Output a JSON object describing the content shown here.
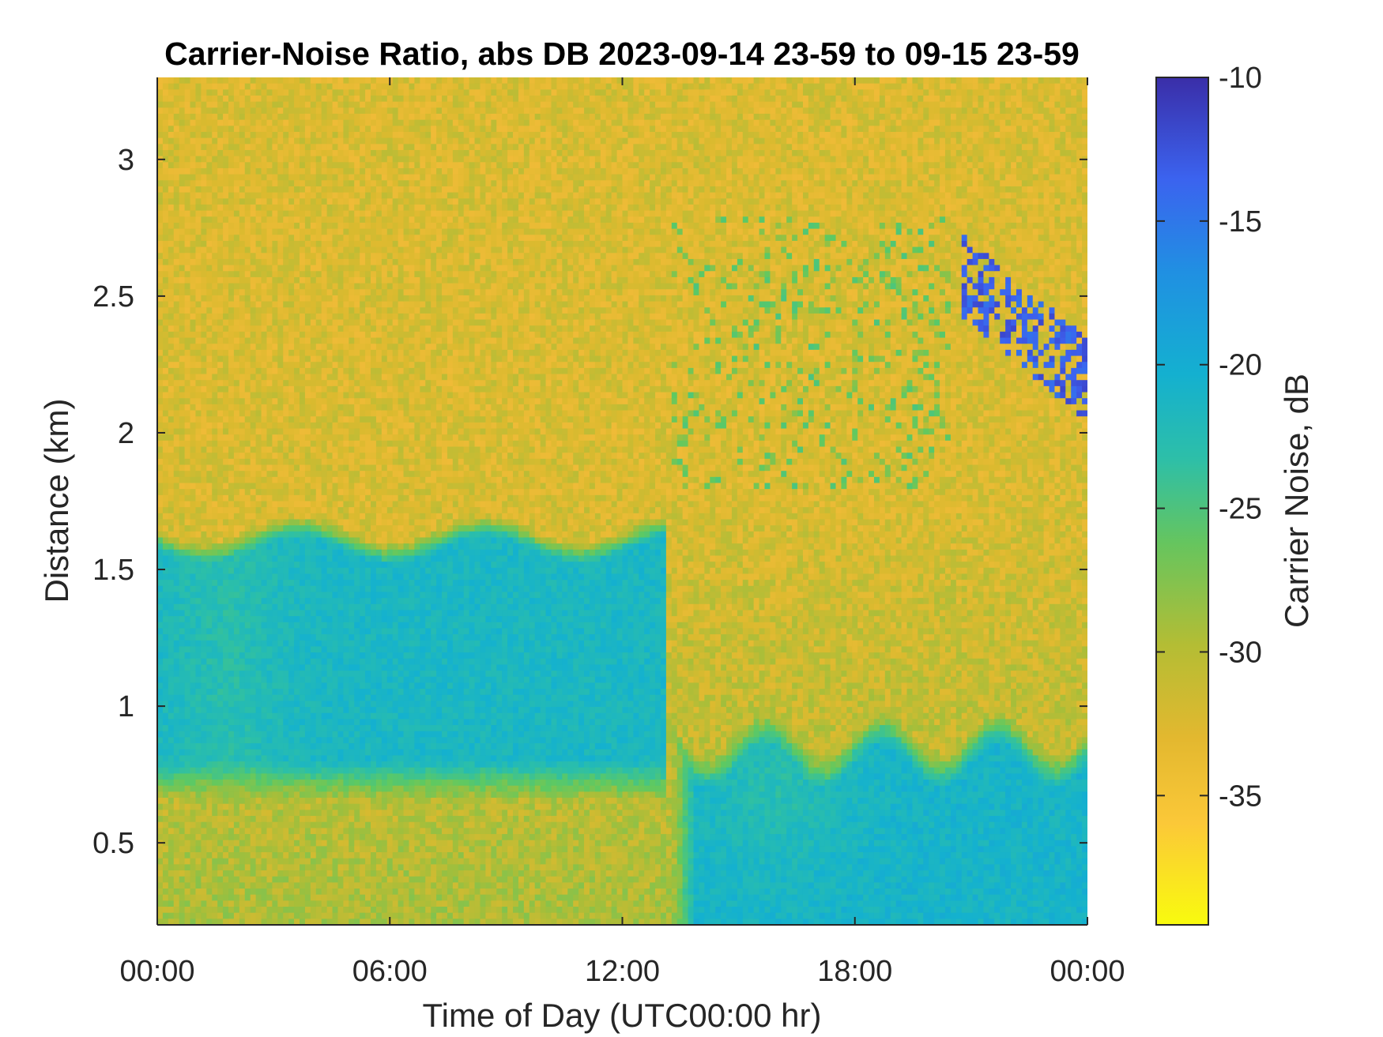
{
  "chart_data": {
    "type": "heatmap",
    "title": "Carrier-Noise Ratio, abs DB 2023-09-14 23-59 to 09-15 23-59",
    "xlabel": "Time of Day (UTC00:00 hr)",
    "ylabel": "Distance (km)",
    "xlim": [
      0,
      24
    ],
    "ylim": [
      0.2,
      3.3
    ],
    "x_ticks": [
      {
        "value": 0,
        "label": "00:00"
      },
      {
        "value": 6,
        "label": "06:00"
      },
      {
        "value": 12,
        "label": "12:00"
      },
      {
        "value": 18,
        "label": "18:00"
      },
      {
        "value": 24,
        "label": "00:00"
      }
    ],
    "y_ticks": [
      {
        "value": 0.5,
        "label": "0.5"
      },
      {
        "value": 1,
        "label": "1"
      },
      {
        "value": 1.5,
        "label": "1.5"
      },
      {
        "value": 2,
        "label": "2"
      },
      {
        "value": 2.5,
        "label": "2.5"
      },
      {
        "value": 3,
        "label": "3"
      }
    ],
    "colorbar": {
      "label": "Carrier Noise, dB",
      "range": [
        -39.5,
        -10
      ],
      "ticks": [
        {
          "value": -10,
          "label": "-10"
        },
        {
          "value": -15,
          "label": "-15"
        },
        {
          "value": -20,
          "label": "-20"
        },
        {
          "value": -25,
          "label": "-25"
        },
        {
          "value": -30,
          "label": "-30"
        },
        {
          "value": -35,
          "label": "-35"
        }
      ],
      "colormap": "parula (reversed)"
    },
    "regions": [
      {
        "desc": "background noise",
        "x": [
          0,
          24
        ],
        "y": [
          1.8,
          3.3
        ],
        "value": -33
      },
      {
        "desc": "boundary layer night",
        "x": [
          0,
          13.2
        ],
        "y": [
          0.7,
          1.65
        ],
        "value": -21
      },
      {
        "desc": "boundary layer afternoon",
        "x": [
          13.5,
          24
        ],
        "y": [
          0.25,
          0.95
        ],
        "value": -20
      },
      {
        "desc": "cloud returns",
        "x": [
          20.5,
          24
        ],
        "y": [
          2.2,
          2.9
        ],
        "value": -13
      }
    ]
  },
  "colors": {
    "background": "#ffffff",
    "axis": "#262626",
    "colormap_stops": [
      "#f9fb0e",
      "#fbbc3c",
      "#dbba2f",
      "#a5be3a",
      "#5ec962",
      "#2cbfa8",
      "#14b1cf",
      "#1e8fe0",
      "#3d63f0",
      "#3b2fb0"
    ]
  }
}
